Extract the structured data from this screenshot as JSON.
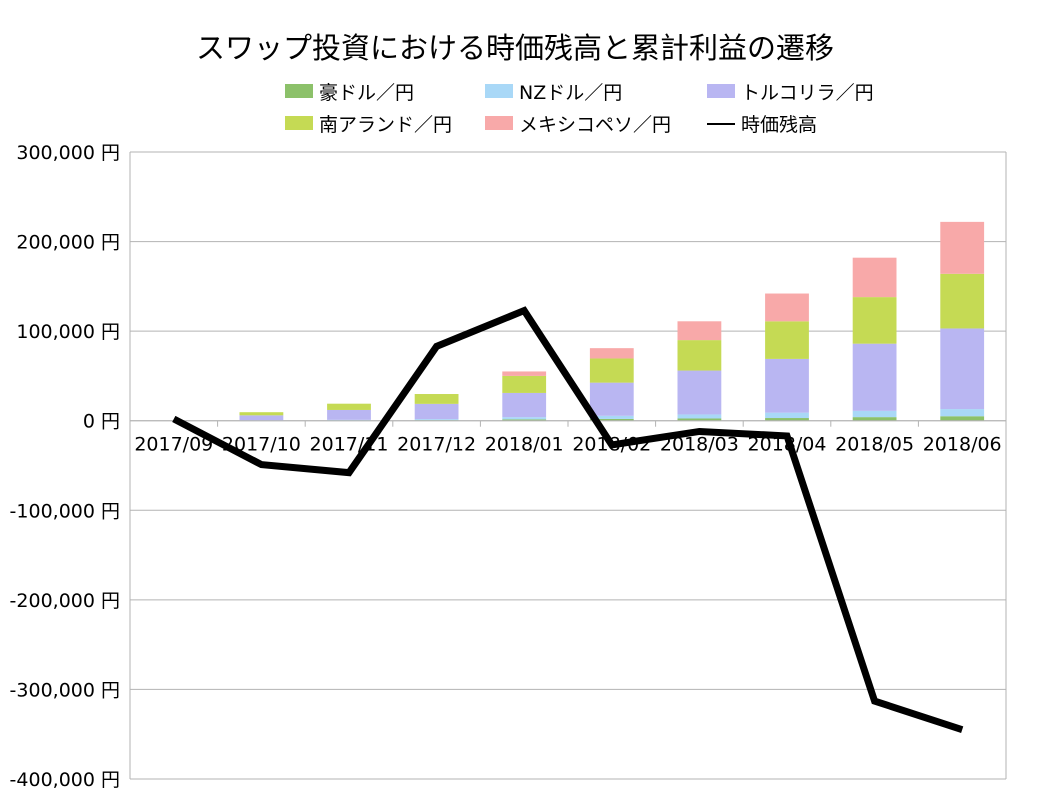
{
  "chart_data": {
    "type": "bar",
    "stacked": true,
    "title": "スワップ投資における時価残高と累計利益の遷移",
    "xlabel": "",
    "ylabel": "",
    "ylim": [
      -400000,
      300000
    ],
    "yticks": [
      300000,
      200000,
      100000,
      0,
      -100000,
      -200000,
      -300000,
      -400000
    ],
    "ytick_labels": [
      "300,000 円",
      "200,000 円",
      "100,000 円",
      "0 円",
      "-100,000 円",
      "-200,000 円",
      "-300,000 円",
      "-400,000 円"
    ],
    "grid": true,
    "legend_position": "top",
    "categories": [
      "2017/09",
      "2017/10",
      "2017/11",
      "2017/12",
      "2018/01",
      "2018/02",
      "2018/03",
      "2018/04",
      "2018/05",
      "2018/06"
    ],
    "series": [
      {
        "name": "豪ドル／円",
        "kind": "bar",
        "color": "#8cc16a",
        "values": [
          0,
          200,
          400,
          600,
          1500,
          2000,
          2500,
          3000,
          4000,
          5000
        ]
      },
      {
        "name": "NZドル／円",
        "kind": "bar",
        "color": "#a9d8f7",
        "values": [
          0,
          300,
          600,
          1200,
          2500,
          3500,
          4500,
          6000,
          7000,
          8000
        ]
      },
      {
        "name": "トルコリラ／円",
        "kind": "bar",
        "color": "#b9b6f2",
        "values": [
          0,
          5500,
          11000,
          17000,
          27000,
          37000,
          49000,
          60000,
          75000,
          90000
        ]
      },
      {
        "name": "南アランド／円",
        "kind": "bar",
        "color": "#c5da54",
        "values": [
          0,
          3500,
          7000,
          11000,
          19000,
          27000,
          34000,
          42000,
          52000,
          61000
        ]
      },
      {
        "name": "メキシコペソ／円",
        "kind": "bar",
        "color": "#f8a9a9",
        "values": [
          0,
          0,
          0,
          0,
          5000,
          11500,
          21000,
          31000,
          44000,
          58000
        ]
      },
      {
        "name": "時価残高",
        "kind": "line",
        "color": "#000000",
        "values": [
          2000,
          -49000,
          -58000,
          83000,
          123000,
          -27000,
          -12000,
          -17000,
          -313000,
          -345000
        ]
      }
    ]
  }
}
